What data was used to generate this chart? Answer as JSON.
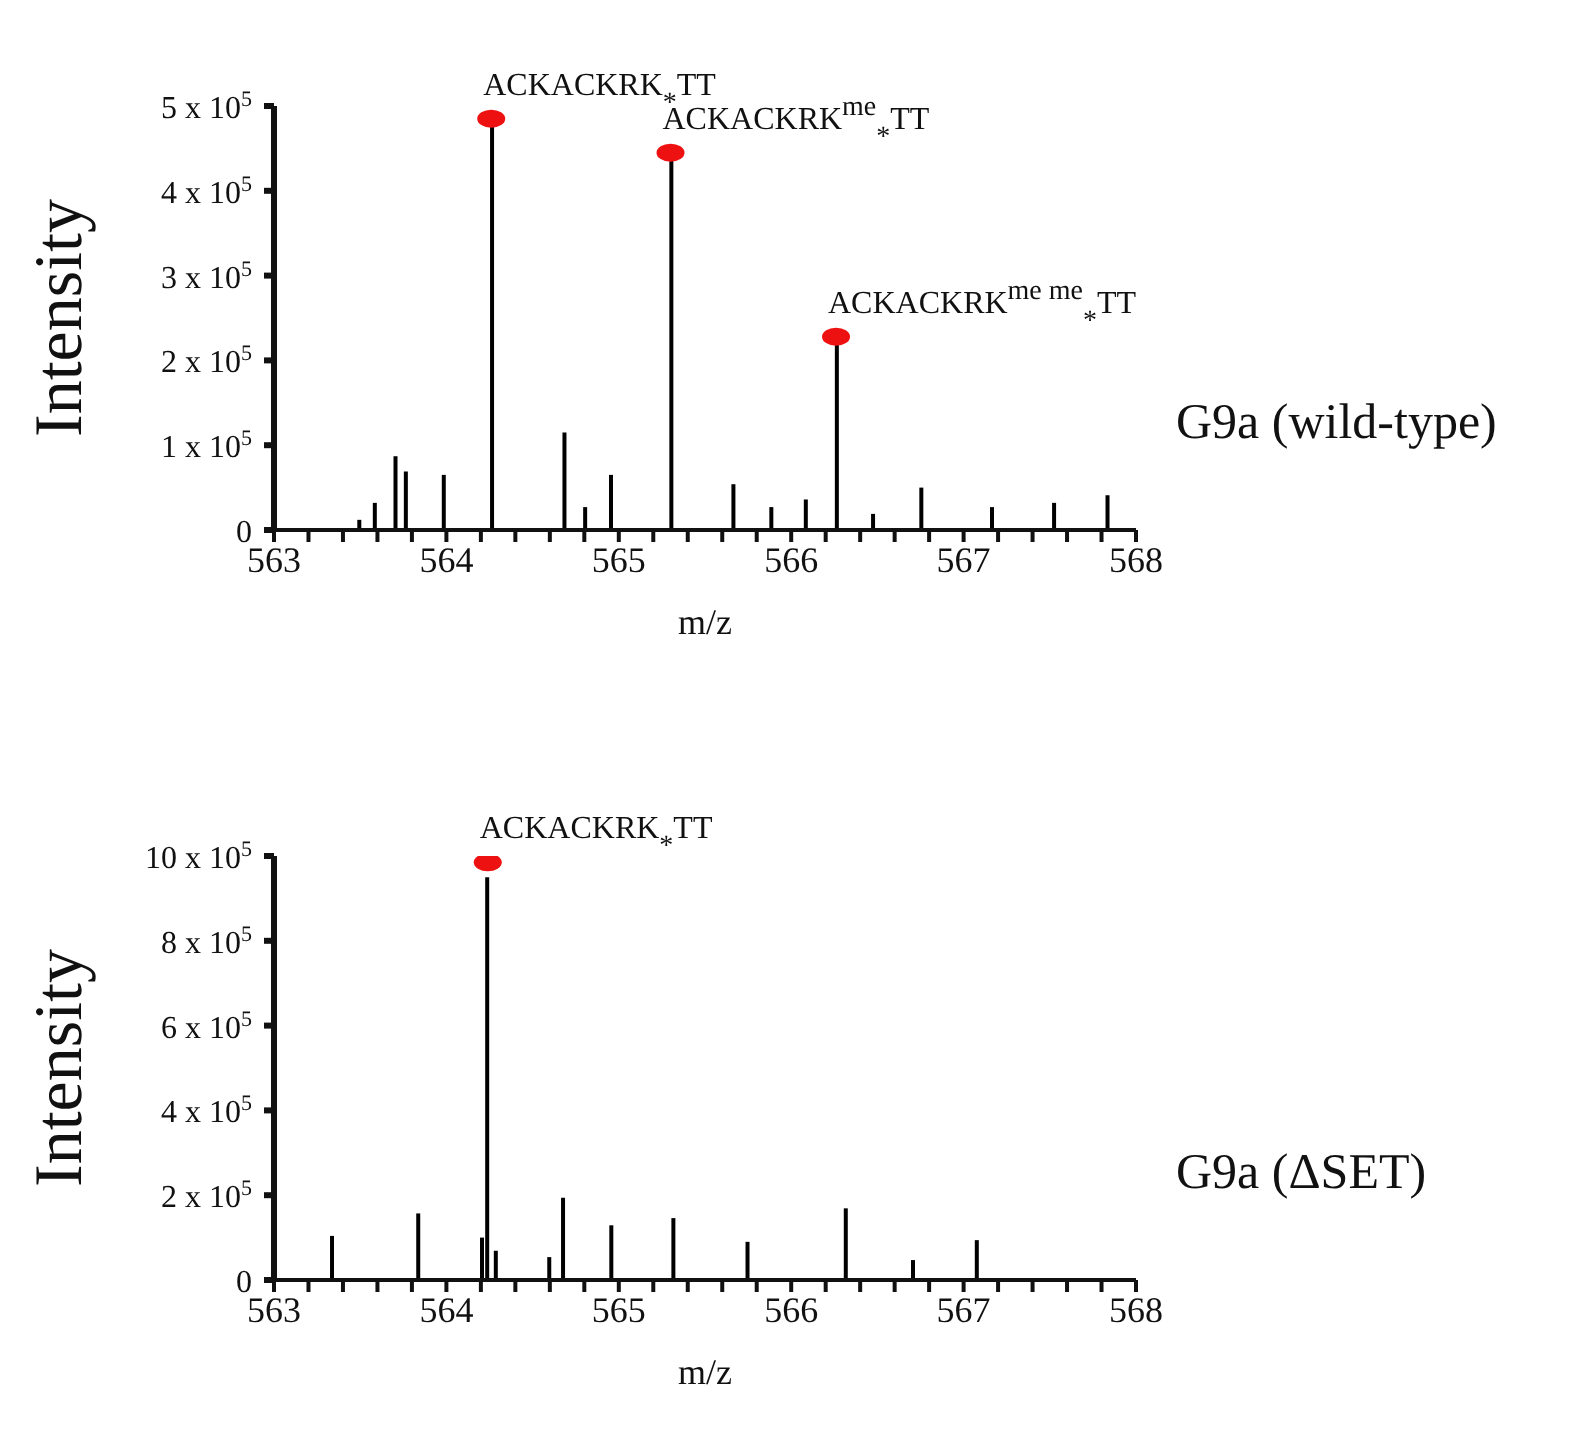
{
  "chart_data": [
    {
      "type": "bar",
      "title": "G9a (wild-type)",
      "xlabel": "m/z",
      "ylabel": "Intensity",
      "marker": "circle",
      "xlim": [
        563,
        568
      ],
      "xticks": [
        563,
        {
          "value": 563.2,
          "label": null
        },
        {
          "value": 563.4,
          "label": null
        },
        {
          "value": 563.6,
          "label": null
        },
        {
          "value": 563.8,
          "label": null
        },
        564,
        {
          "value": 564.2,
          "label": null
        },
        {
          "value": 564.4,
          "label": null
        },
        {
          "value": 564.6,
          "label": null
        },
        {
          "value": 564.8,
          "label": null
        },
        565,
        {
          "value": 565.2,
          "label": null
        },
        {
          "value": 565.4,
          "label": null
        },
        {
          "value": 565.6,
          "label": null
        },
        {
          "value": 565.8,
          "label": null
        },
        566,
        {
          "value": 566.2,
          "label": null
        },
        {
          "value": 566.4,
          "label": null
        },
        {
          "value": 566.6,
          "label": null
        },
        {
          "value": 566.8,
          "label": null
        },
        567,
        {
          "value": 567.2,
          "label": null
        },
        {
          "value": 567.4,
          "label": null
        },
        {
          "value": 567.6,
          "label": null
        },
        {
          "value": 567.8,
          "label": null
        },
        568
      ],
      "ylim": [
        0,
        500000
      ],
      "yticks": [
        0,
        {
          "value": 100000,
          "label": "1 x 10$^{5}$"
        },
        {
          "value": 200000,
          "label": "2 x 10$^{5}$"
        },
        {
          "value": 300000,
          "label": "3 x 10$^{5}$"
        },
        {
          "value": 400000,
          "label": "4 x 10$^{5}$"
        },
        {
          "value": 500000,
          "label": "5 x 10$^{5}$"
        }
      ],
      "series": [
        {
          "color": "#000000",
          "x": [
            563.49,
            563.58,
            563.7,
            563.76,
            563.98,
            564.26,
            564.68,
            564.8,
            564.95,
            565.3,
            565.66,
            565.88,
            566.08,
            566.26,
            566.47,
            566.75,
            567.16,
            567.52,
            567.83
          ],
          "values": [
            12000,
            32000,
            87000,
            69000,
            65000,
            480000,
            115000,
            27000,
            65000,
            440000,
            54000,
            27000,
            36000,
            225000,
            19000,
            50000,
            27000,
            32000,
            41000
          ]
        },
        {
          "type": "scatter",
          "color": "#ee1111",
          "x": [
            564.26,
            565.3,
            566.26
          ],
          "values": [
            485000,
            445000,
            228000
          ]
        }
      ],
      "annotations": [
        {
          "text": "ACKACKRK$_{*}$TT",
          "x": 564.26,
          "y": 485000
        },
        {
          "text": "ACKACKRK$^{me}$$_{*}$TT",
          "x": 565.3,
          "y": 445000
        },
        {
          "text": "ACKACKRK$^{me me}$$_{*}$TT",
          "x": 566.26,
          "y": 228000
        }
      ]
    },
    {
      "type": "bar",
      "title": "G9a (ΔSET)",
      "xlabel": "m/z",
      "ylabel": "Intensity",
      "marker": "circle",
      "xlim": [
        563,
        568
      ],
      "xticks": [
        563,
        {
          "value": 563.2,
          "label": null
        },
        {
          "value": 563.4,
          "label": null
        },
        {
          "value": 563.6,
          "label": null
        },
        {
          "value": 563.8,
          "label": null
        },
        564,
        {
          "value": 564.2,
          "label": null
        },
        {
          "value": 564.4,
          "label": null
        },
        {
          "value": 564.6,
          "label": null
        },
        {
          "value": 564.8,
          "label": null
        },
        565,
        {
          "value": 565.2,
          "label": null
        },
        {
          "value": 565.4,
          "label": null
        },
        {
          "value": 565.6,
          "label": null
        },
        {
          "value": 565.8,
          "label": null
        },
        566,
        {
          "value": 566.2,
          "label": null
        },
        {
          "value": 566.4,
          "label": null
        },
        {
          "value": 566.6,
          "label": null
        },
        {
          "value": 566.8,
          "label": null
        },
        567,
        {
          "value": 567.2,
          "label": null
        },
        {
          "value": 567.4,
          "label": null
        },
        {
          "value": 567.6,
          "label": null
        },
        {
          "value": 567.8,
          "label": null
        },
        568
      ],
      "ylim": [
        0,
        1000000
      ],
      "yticks": [
        0,
        {
          "value": 200000,
          "label": "2 x 10$^{5}$"
        },
        {
          "value": 400000,
          "label": "4 x 10$^{5}$"
        },
        {
          "value": 600000,
          "label": "6 x 10$^{5}$"
        },
        {
          "value": 800000,
          "label": "8 x 10$^{5}$"
        },
        {
          "value": 1000000,
          "label": "10 x 10$^{5}$"
        }
      ],
      "series": [
        {
          "color": "#000000",
          "x": [
            563.34,
            563.84,
            564.21,
            564.24,
            564.29,
            564.6,
            564.68,
            564.96,
            565.32,
            565.75,
            566.32,
            566.71,
            567.08
          ],
          "values": [
            104000,
            157000,
            100000,
            950000,
            69000,
            54000,
            194000,
            129000,
            146000,
            90000,
            169000,
            47000,
            94000
          ]
        },
        {
          "type": "scatter",
          "color": "#ee1111",
          "x": [
            564.24
          ],
          "values": [
            985000
          ]
        }
      ],
      "annotations": [
        {
          "text": "ACKACKRK$_{*}$TT",
          "x": 564.24,
          "y": 985000
        }
      ]
    }
  ]
}
